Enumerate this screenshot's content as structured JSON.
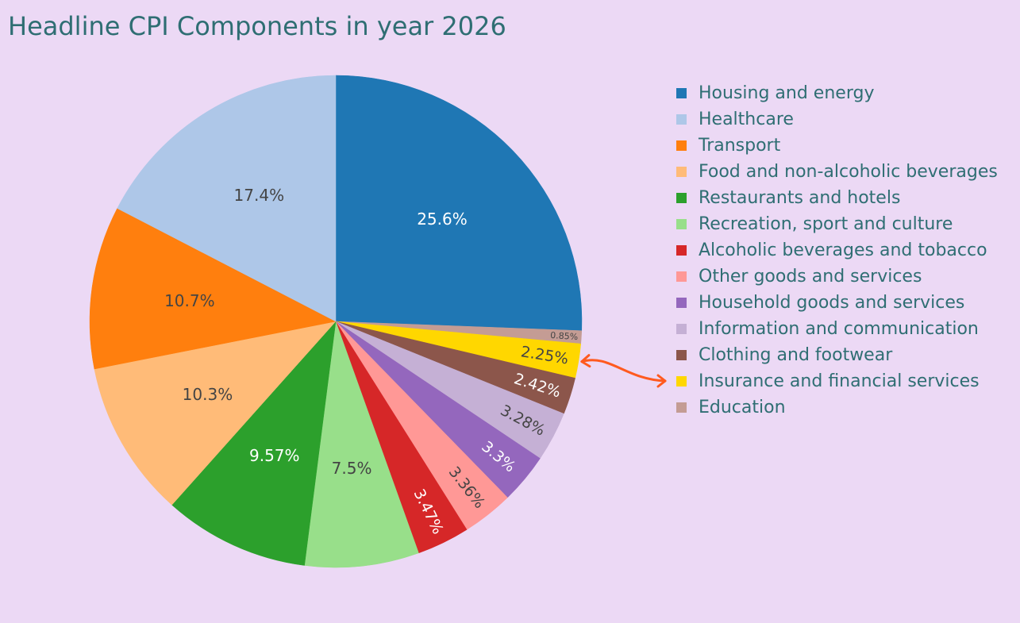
{
  "chart_data": {
    "type": "pie",
    "title": "Headline CPI Components in year 2026",
    "direction": "clockwise",
    "start": "12 o'clock",
    "slices": [
      {
        "label": "Housing and energy",
        "value": 25.6,
        "text": "25.6%",
        "color": "#1f77b4",
        "text_color": "#ffffff"
      },
      {
        "label": "Education",
        "value": 0.85,
        "text": "0.85%",
        "color": "#c49c94",
        "text_color": "#444444"
      },
      {
        "label": "Insurance and financial services",
        "value": 2.25,
        "text": "2.25%",
        "color": "#ffd700",
        "text_color": "#444444"
      },
      {
        "label": "Clothing and footwear",
        "value": 2.42,
        "text": "2.42%",
        "color": "#8c564b",
        "text_color": "#ffffff"
      },
      {
        "label": "Information and communication",
        "value": 3.28,
        "text": "3.28%",
        "color": "#c5b0d5",
        "text_color": "#444444"
      },
      {
        "label": "Household goods and services",
        "value": 3.3,
        "text": "3.3%",
        "color": "#9467bd",
        "text_color": "#ffffff"
      },
      {
        "label": "Other goods and services",
        "value": 3.36,
        "text": "3.36%",
        "color": "#ff9896",
        "text_color": "#444444"
      },
      {
        "label": "Alcoholic beverages and tobacco",
        "value": 3.47,
        "text": "3.47%",
        "color": "#d62728",
        "text_color": "#ffffff"
      },
      {
        "label": "Recreation, sport and culture",
        "value": 7.5,
        "text": "7.5%",
        "color": "#98df8a",
        "text_color": "#444444"
      },
      {
        "label": "Restaurants and hotels",
        "value": 9.57,
        "text": "9.57%",
        "color": "#2ca02c",
        "text_color": "#ffffff"
      },
      {
        "label": "Food and non-alcoholic beverages",
        "value": 10.3,
        "text": "10.3%",
        "color": "#ffbb78",
        "text_color": "#444444"
      },
      {
        "label": "Transport",
        "value": 10.7,
        "text": "10.7%",
        "color": "#ff7f0e",
        "text_color": "#444444"
      },
      {
        "label": "Healthcare",
        "value": 17.4,
        "text": "17.4%",
        "color": "#aec7e8",
        "text_color": "#444444"
      }
    ],
    "legend": {
      "placement": "right",
      "order": [
        "Housing and energy",
        "Healthcare",
        "Transport",
        "Food and non-alcoholic beverages",
        "Restaurants and hotels",
        "Recreation, sport and culture",
        "Alcoholic beverages and tobacco",
        "Other goods and services",
        "Household goods and services",
        "Information and communication",
        "Clothing and footwear",
        "Insurance and financial services",
        "Education"
      ]
    },
    "annotation": {
      "type": "double-headed-arrow",
      "points_to": "Insurance and financial services",
      "color": "#ff5a1f"
    }
  },
  "colors": {
    "background": "#ecd9f5",
    "text": "#2f6e73"
  }
}
